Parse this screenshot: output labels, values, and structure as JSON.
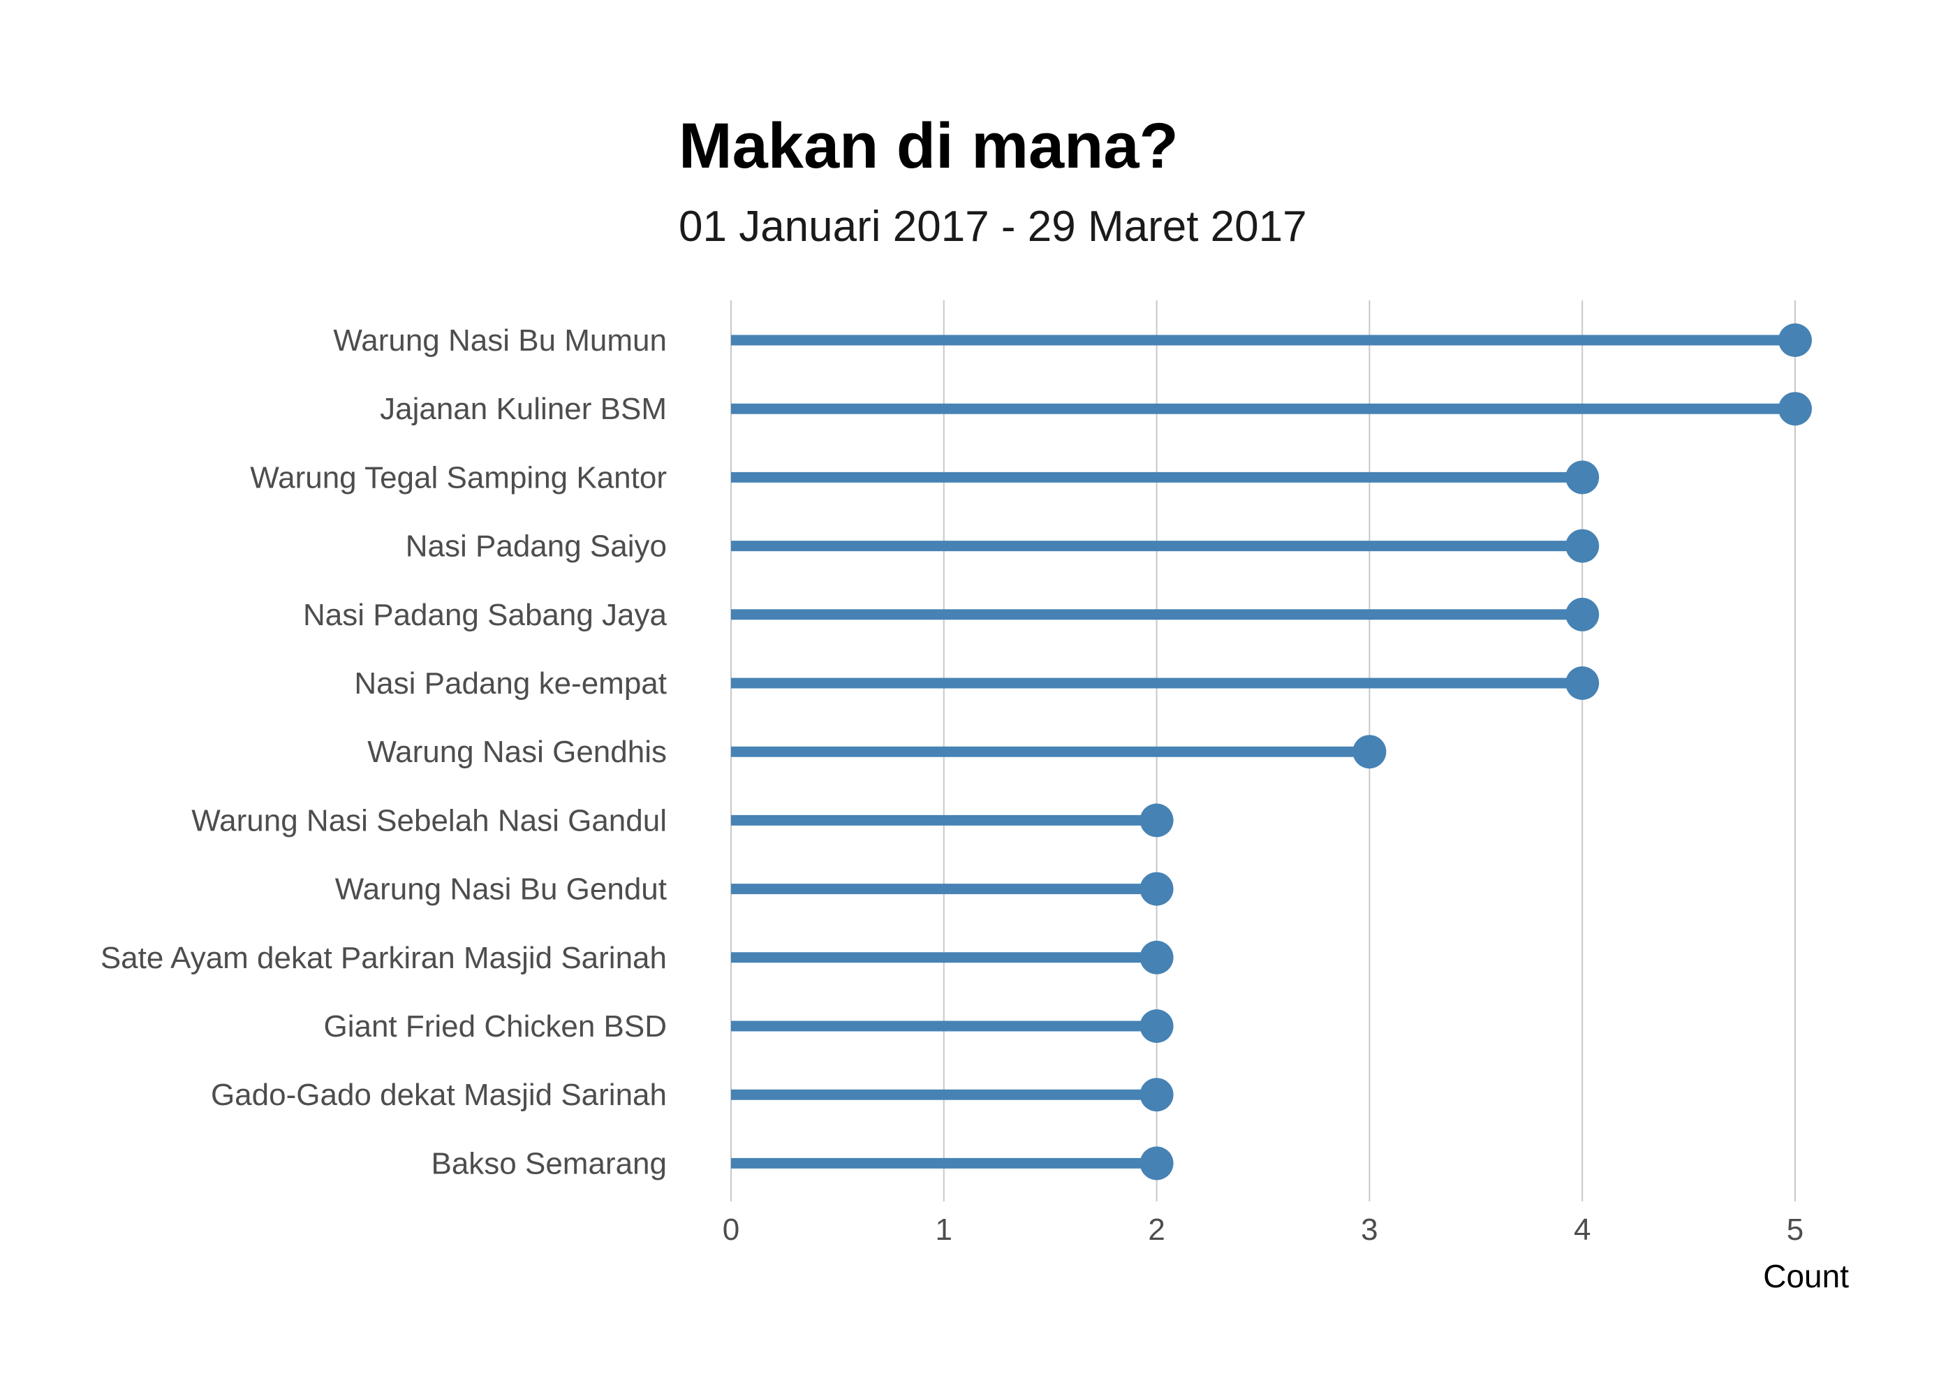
{
  "chart_data": {
    "type": "lollipop",
    "title": "Makan di mana?",
    "subtitle": "01 Januari 2017 - 29 Maret 2017",
    "xlabel": "Count",
    "ylabel": "",
    "xlim": [
      0,
      5
    ],
    "xticks": [
      0,
      1,
      2,
      3,
      4,
      5
    ],
    "grid": true,
    "orientation": "horizontal",
    "color": "#4682b4",
    "categories": [
      "Warung Nasi Bu Mumun",
      "Jajanan Kuliner BSM",
      "Warung Tegal Samping Kantor",
      "Nasi Padang Saiyo",
      "Nasi Padang Sabang Jaya",
      "Nasi Padang ke-empat",
      "Warung Nasi Gendhis",
      "Warung Nasi Sebelah Nasi Gandul",
      "Warung Nasi Bu Gendut",
      "Sate Ayam dekat Parkiran Masjid Sarinah",
      "Giant Fried Chicken BSD",
      "Gado-Gado dekat Masjid Sarinah",
      "Bakso Semarang"
    ],
    "values": [
      5,
      5,
      4,
      4,
      4,
      4,
      3,
      2,
      2,
      2,
      2,
      2,
      2
    ]
  }
}
